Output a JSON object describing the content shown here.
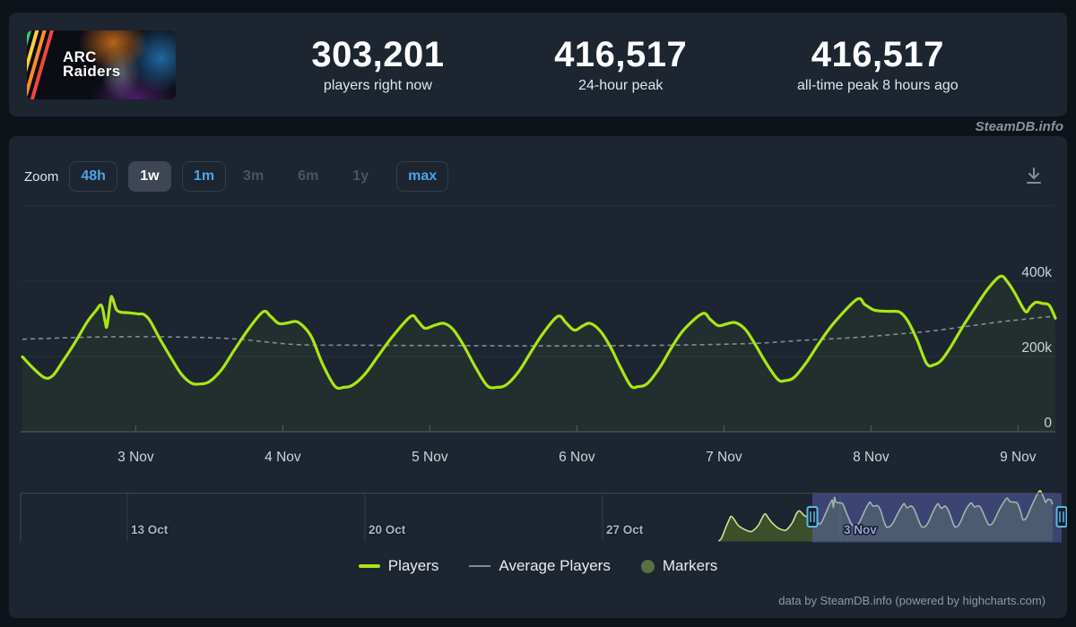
{
  "header": {
    "game_title_line1": "ARC",
    "game_title_line2": "Raiders",
    "stats": [
      {
        "value": "303,201",
        "label": "players right now"
      },
      {
        "value": "416,517",
        "label": "24-hour peak"
      },
      {
        "value": "416,517",
        "label": "all-time peak 8 hours ago"
      }
    ],
    "watermark": "SteamDB.info",
    "capsule_stripe_colors": [
      "#e8eef2",
      "#2fd06a",
      "#ffd03e",
      "#ff8d2e",
      "#f0483e"
    ]
  },
  "toolbar": {
    "zoom_label": "Zoom",
    "ranges": [
      {
        "label": "48h",
        "state": "active"
      },
      {
        "label": "1w",
        "state": "selected"
      },
      {
        "label": "1m",
        "state": "active"
      },
      {
        "label": "3m",
        "state": "disabled"
      },
      {
        "label": "6m",
        "state": "disabled"
      },
      {
        "label": "1y",
        "state": "disabled"
      },
      {
        "label": "max",
        "state": "active"
      }
    ],
    "icons": {
      "download": "download-tray-arrow"
    }
  },
  "colors": {
    "page_bg": "#0e131a",
    "panel_bg": "#1c2530",
    "accent_blue": "#4ba5e6",
    "line_green": "#a8e616",
    "avg_gray": "#8e98a2",
    "marker_green": "#567244",
    "grid": "#29323c",
    "grid_top": "#242d37",
    "axis": "#4e5861",
    "axis_label": "#ccd4da",
    "nav_grid": "#323d47",
    "nav_outline": "#3e4852",
    "nav_line": "#cde398",
    "mask_blue": "rgba(102,112,210,0.42)",
    "handle_border": "#5cb8e6",
    "nav_label": "#a8b2bc",
    "nav_label_selected": "#98a0d8"
  },
  "chart_data": {
    "type": "line",
    "title": "ARC Raiders concurrent players (1 week view)",
    "x_units": "hours since 2 Nov 00:00 UTC",
    "y_units": "players (thousands)",
    "ylim": [
      0,
      600
    ],
    "yticks": [
      {
        "v": 0,
        "label": "0"
      },
      {
        "v": 200,
        "label": "200k"
      },
      {
        "v": 400,
        "label": "400k"
      }
    ],
    "xticks": [
      {
        "t": 24,
        "label": "3 Nov"
      },
      {
        "t": 48,
        "label": "4 Nov"
      },
      {
        "t": 72,
        "label": "5 Nov"
      },
      {
        "t": 96,
        "label": "6 Nov"
      },
      {
        "t": 120,
        "label": "7 Nov"
      },
      {
        "t": 144,
        "label": "8 Nov"
      },
      {
        "t": 168,
        "label": "9 Nov"
      }
    ],
    "series": [
      {
        "name": "Players",
        "color": "#a8e616",
        "points": [
          [
            5.5,
            199
          ],
          [
            7.5,
            165
          ],
          [
            9.2,
            143
          ],
          [
            10.5,
            150
          ],
          [
            12,
            185
          ],
          [
            14,
            235
          ],
          [
            16,
            290
          ],
          [
            17.5,
            322
          ],
          [
            18.4,
            336
          ],
          [
            19.0,
            293
          ],
          [
            19.3,
            281
          ],
          [
            19.9,
            352
          ],
          [
            20.2,
            355
          ],
          [
            20.8,
            326
          ],
          [
            21.5,
            318
          ],
          [
            23,
            316
          ],
          [
            24.5,
            313
          ],
          [
            25.3,
            312
          ],
          [
            26.3,
            296
          ],
          [
            28,
            245
          ],
          [
            30,
            190
          ],
          [
            31.5,
            152
          ],
          [
            33.1,
            129
          ],
          [
            34.5,
            127
          ],
          [
            36,
            133
          ],
          [
            38,
            165
          ],
          [
            40,
            215
          ],
          [
            42.5,
            275
          ],
          [
            44.8,
            319
          ],
          [
            46,
            307
          ],
          [
            47.3,
            288
          ],
          [
            48.7,
            289
          ],
          [
            50.2,
            293
          ],
          [
            51.5,
            278
          ],
          [
            52.8,
            248
          ],
          [
            54.5,
            180
          ],
          [
            56.5,
            121
          ],
          [
            58,
            118
          ],
          [
            59.5,
            125
          ],
          [
            61.5,
            155
          ],
          [
            63.5,
            200
          ],
          [
            66,
            255
          ],
          [
            68.9,
            307
          ],
          [
            70,
            295
          ],
          [
            71.2,
            275
          ],
          [
            72.8,
            283
          ],
          [
            74.3,
            288
          ],
          [
            75.8,
            272
          ],
          [
            77.5,
            230
          ],
          [
            79.5,
            170
          ],
          [
            81.4,
            122
          ],
          [
            83,
            118
          ],
          [
            84.5,
            125
          ],
          [
            86.5,
            160
          ],
          [
            88.5,
            212
          ],
          [
            90.5,
            262
          ],
          [
            92.9,
            307
          ],
          [
            94.2,
            290
          ],
          [
            95.6,
            270
          ],
          [
            97,
            282
          ],
          [
            98.2,
            288
          ],
          [
            99.8,
            268
          ],
          [
            101.5,
            225
          ],
          [
            103,
            175
          ],
          [
            104.8,
            122
          ],
          [
            106,
            120
          ],
          [
            107.5,
            128
          ],
          [
            109.5,
            170
          ],
          [
            111.5,
            225
          ],
          [
            113.5,
            272
          ],
          [
            116.5,
            314
          ],
          [
            117.8,
            298
          ],
          [
            119.1,
            282
          ],
          [
            120.5,
            287
          ],
          [
            121.9,
            290
          ],
          [
            123.5,
            272
          ],
          [
            125,
            235
          ],
          [
            126.8,
            185
          ],
          [
            128.8,
            139
          ],
          [
            130,
            136
          ],
          [
            131.5,
            145
          ],
          [
            133.5,
            185
          ],
          [
            135.5,
            235
          ],
          [
            138,
            290
          ],
          [
            141.7,
            352
          ],
          [
            143,
            338
          ],
          [
            144.4,
            324
          ],
          [
            145.6,
            321
          ],
          [
            147,
            320
          ],
          [
            148.7,
            318
          ],
          [
            150,
            295
          ],
          [
            151.5,
            245
          ],
          [
            153.1,
            181
          ],
          [
            154.3,
            178
          ],
          [
            155.5,
            190
          ],
          [
            157,
            225
          ],
          [
            159,
            280
          ],
          [
            161,
            330
          ],
          [
            163,
            378
          ],
          [
            165.1,
            413
          ],
          [
            166.3,
            398
          ],
          [
            167.5,
            368
          ],
          [
            169.2,
            320
          ],
          [
            170,
            332
          ],
          [
            170.9,
            344
          ],
          [
            172,
            341
          ],
          [
            173.1,
            336
          ],
          [
            174.1,
            302
          ]
        ]
      },
      {
        "name": "Average Players",
        "color": "#8e98a2",
        "dashed": true,
        "points": [
          [
            5.5,
            246
          ],
          [
            18,
            252
          ],
          [
            30,
            252
          ],
          [
            40,
            247
          ],
          [
            50,
            232
          ],
          [
            60,
            230
          ],
          [
            75,
            229
          ],
          [
            90,
            228
          ],
          [
            105,
            229
          ],
          [
            115,
            231
          ],
          [
            125,
            235
          ],
          [
            133,
            243
          ],
          [
            141,
            250
          ],
          [
            148,
            259
          ],
          [
            154,
            268
          ],
          [
            160,
            281
          ],
          [
            165,
            292
          ],
          [
            169,
            299
          ],
          [
            172,
            304
          ],
          [
            174.1,
            307
          ]
        ]
      },
      {
        "name": "Markers",
        "color": "#567244",
        "points": []
      }
    ]
  },
  "navigator": {
    "xticks": [
      {
        "t": -480,
        "label": "13 Oct",
        "selected": false
      },
      {
        "t": -312,
        "label": "20 Oct",
        "selected": false
      },
      {
        "t": -144,
        "label": "27 Oct",
        "selected": false
      },
      {
        "t": 24,
        "label": "3 Nov",
        "selected": true
      }
    ],
    "selected_range_hours": [
      3.5,
      176
    ],
    "series_prefix_points": [
      [
        -62,
        4
      ],
      [
        -60,
        25
      ],
      [
        -57,
        110
      ],
      [
        -54,
        190
      ],
      [
        -53,
        205
      ],
      [
        -51,
        180
      ],
      [
        -48,
        130
      ],
      [
        -44,
        100
      ],
      [
        -40,
        82
      ],
      [
        -38,
        85
      ],
      [
        -34,
        130
      ],
      [
        -31,
        195
      ],
      [
        -29,
        225
      ],
      [
        -27,
        195
      ],
      [
        -24,
        150
      ],
      [
        -20,
        110
      ],
      [
        -16,
        92
      ],
      [
        -14,
        95
      ],
      [
        -10,
        150
      ],
      [
        -7,
        225
      ],
      [
        -5,
        250
      ],
      [
        -3,
        230
      ],
      [
        -1,
        208
      ],
      [
        3,
        195
      ]
    ]
  },
  "legend": {
    "items": [
      {
        "label": "Players",
        "swatch": "line",
        "color": "#a8e616"
      },
      {
        "label": "Average Players",
        "swatch": "thin-line",
        "color": "#808a94"
      },
      {
        "label": "Markers",
        "swatch": "circle",
        "color": "#567244"
      }
    ]
  },
  "credits": "data by SteamDB.info (powered by highcharts.com)"
}
